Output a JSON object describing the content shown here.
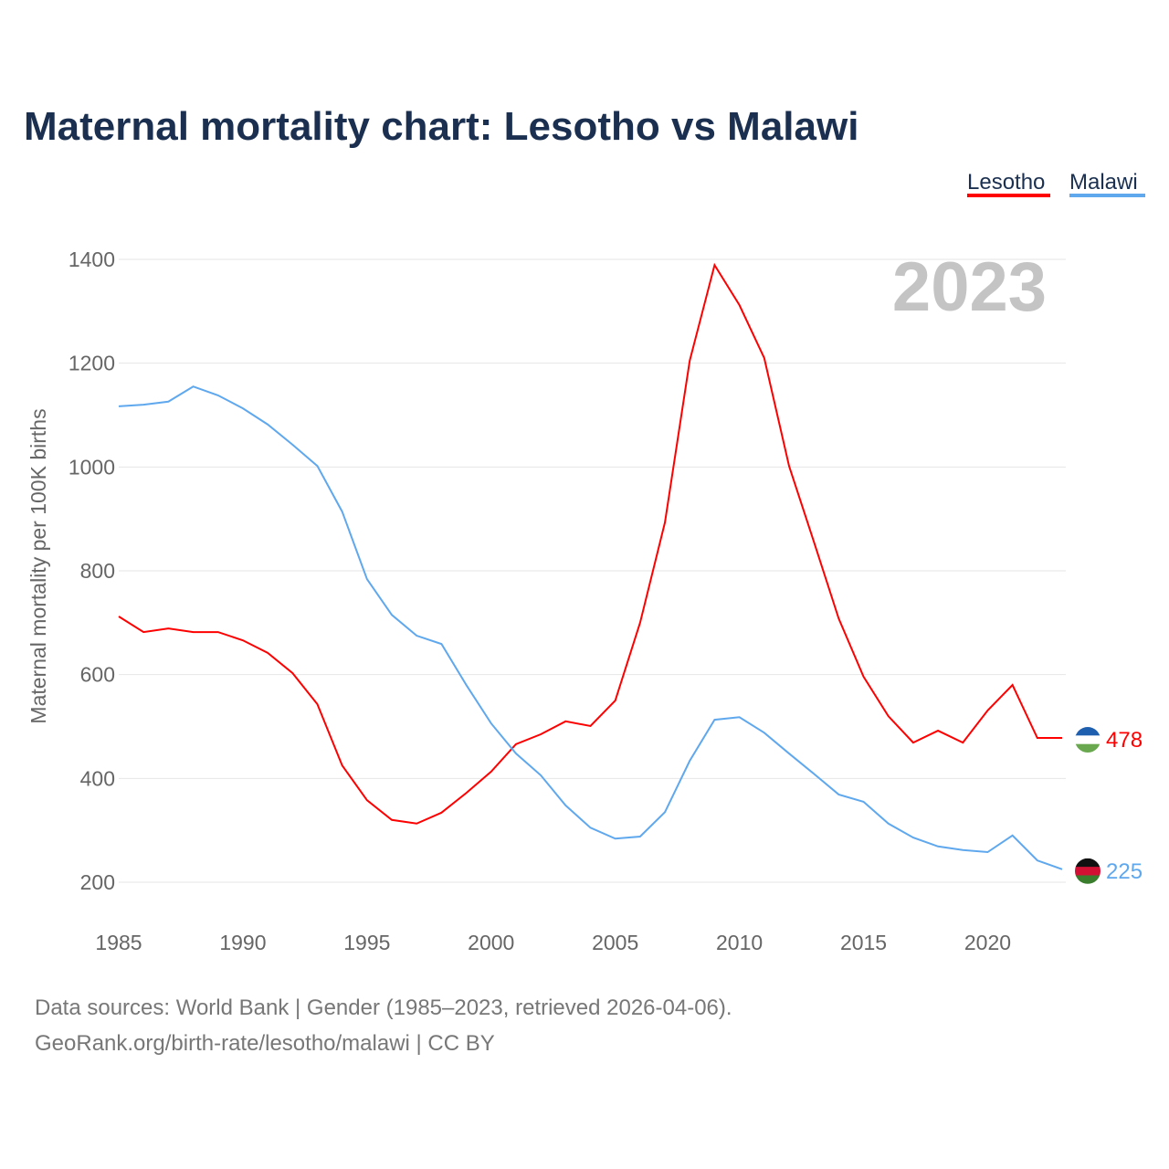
{
  "title": "Maternal mortality chart: Lesotho vs Malawi",
  "year_label": "2023",
  "footer": {
    "line1": "Data sources: World Bank | Gender (1985–2023, retrieved 2026-04-06).",
    "line2": "GeoRank.org/birth-rate/lesotho/malawi | CC BY"
  },
  "chart_data": {
    "type": "line",
    "title": "Maternal mortality chart: Lesotho vs Malawi",
    "xlabel": "",
    "ylabel": "Maternal mortality per 100K births",
    "xlim": [
      1985,
      2023
    ],
    "ylim": [
      200,
      1400
    ],
    "xticks": [
      1985,
      1990,
      1995,
      2000,
      2005,
      2010,
      2015,
      2020
    ],
    "yticks": [
      200,
      400,
      600,
      800,
      1000,
      1200,
      1400
    ],
    "grid": true,
    "legend_placement": "top-right",
    "x": [
      1985,
      1986,
      1987,
      1988,
      1989,
      1990,
      1991,
      1992,
      1993,
      1994,
      1995,
      1996,
      1997,
      1998,
      1999,
      2000,
      2001,
      2002,
      2003,
      2004,
      2005,
      2006,
      2007,
      2008,
      2009,
      2010,
      2011,
      2012,
      2013,
      2014,
      2015,
      2016,
      2017,
      2018,
      2019,
      2020,
      2021,
      2022,
      2023
    ],
    "series": [
      {
        "name": "Lesotho",
        "color": "#ff0000",
        "end_label": "478",
        "values": [
          712,
          682,
          689,
          682,
          682,
          666,
          642,
          603,
          543,
          425,
          358,
          320,
          313,
          334,
          372,
          413,
          466,
          485,
          510,
          501,
          550,
          700,
          893,
          1205,
          1389,
          1312,
          1210,
          1002,
          856,
          708,
          596,
          520,
          469,
          492,
          469,
          531,
          580,
          478,
          478
        ]
      },
      {
        "name": "Malawi",
        "color": "#5fa8ee",
        "end_label": "225",
        "values": [
          1117,
          1120,
          1126,
          1155,
          1138,
          1113,
          1082,
          1043,
          1002,
          914,
          784,
          715,
          675,
          659,
          580,
          506,
          448,
          406,
          348,
          305,
          284,
          288,
          335,
          434,
          513,
          518,
          488,
          448,
          409,
          369,
          355,
          313,
          286,
          269,
          262,
          258,
          290,
          242,
          225
        ]
      }
    ]
  }
}
